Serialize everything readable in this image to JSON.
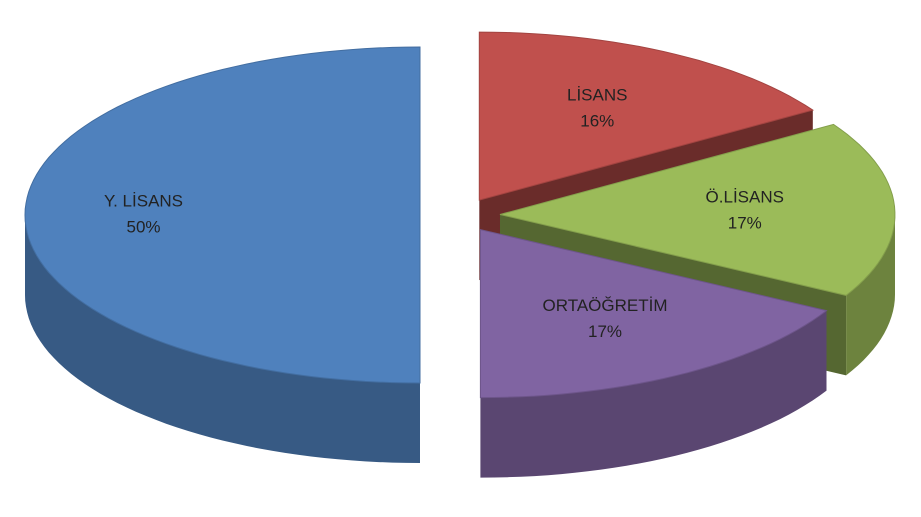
{
  "chart_data": {
    "type": "pie3d",
    "categories": [
      "LİSANS",
      "Ö.LİSANS",
      "ORTAÖĞRETİM",
      "Y. LİSANS"
    ],
    "values": [
      16,
      17,
      17,
      50
    ],
    "value_labels": [
      "16%",
      "17%",
      "17%",
      "50%"
    ],
    "colors": [
      "#c0504d",
      "#9bbb59",
      "#8064a2",
      "#4f81bd"
    ]
  }
}
